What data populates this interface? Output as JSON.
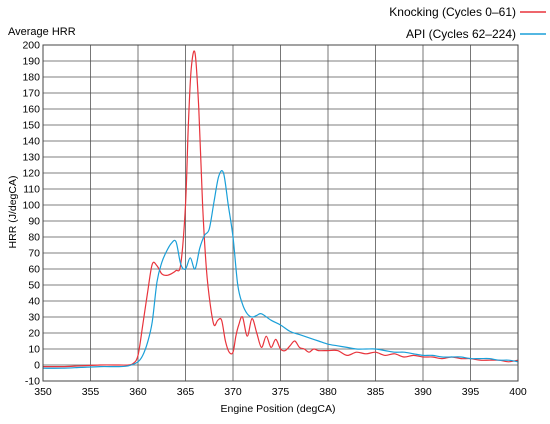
{
  "chart_data": {
    "type": "line",
    "title": "Average HRR",
    "xlabel": "Engine Position (degCA)",
    "ylabel": "HRR (J/degCA)",
    "xlim": [
      350,
      400
    ],
    "ylim": [
      -10,
      200
    ],
    "xticks": [
      350,
      355,
      360,
      365,
      370,
      375,
      380,
      385,
      390,
      395,
      400
    ],
    "yticks": [
      -10,
      0,
      10,
      20,
      30,
      40,
      50,
      60,
      70,
      80,
      90,
      100,
      110,
      120,
      130,
      140,
      150,
      160,
      170,
      180,
      190,
      200
    ],
    "grid": true,
    "legend_position": "top-right",
    "series": [
      {
        "name": "Knocking (Cycles 0–61)",
        "color": "#e8343c",
        "x": [
          350,
          352,
          354,
          356,
          358,
          359,
          359.5,
          360,
          360.5,
          361,
          361.5,
          362,
          362.5,
          363,
          363.5,
          364,
          364.5,
          365,
          365.3,
          365.6,
          366,
          366.4,
          366.8,
          367.2,
          367.6,
          368,
          368.4,
          368.8,
          369.2,
          369.6,
          370,
          370.3,
          370.6,
          371,
          371.5,
          372,
          372.5,
          373,
          373.5,
          374,
          374.5,
          375,
          375.5,
          376,
          376.5,
          377,
          377.5,
          378,
          378.5,
          379,
          380,
          381,
          382,
          383,
          384,
          385,
          386,
          387,
          388,
          389,
          390,
          391,
          392,
          393,
          394,
          395,
          396,
          397,
          398,
          399,
          400
        ],
        "y": [
          -1,
          -1,
          -0.5,
          0,
          0,
          0,
          1,
          6,
          25,
          45,
          63,
          62,
          57,
          56,
          57,
          59,
          63,
          100,
          150,
          185,
          195,
          160,
          100,
          60,
          38,
          25,
          28,
          28,
          15,
          8,
          8,
          18,
          25,
          30,
          18,
          29,
          20,
          11,
          18,
          11,
          16,
          10,
          9,
          12,
          15,
          11,
          10,
          8,
          10,
          9,
          9,
          9,
          6,
          8,
          7,
          8,
          6,
          7,
          5,
          6,
          5,
          5,
          4,
          5,
          4,
          4,
          3,
          3,
          3,
          2,
          3
        ]
      },
      {
        "name": "API (Cycles 62–224)",
        "color": "#1a9fd8",
        "x": [
          350,
          352,
          354,
          356,
          358,
          359,
          360,
          360.5,
          361,
          361.5,
          362,
          362.5,
          363,
          363.5,
          364,
          364.5,
          365,
          365.5,
          366,
          366.5,
          367,
          367.5,
          368,
          368.5,
          369,
          369.5,
          370,
          370.5,
          371,
          371.5,
          372,
          372.5,
          373,
          374,
          375,
          376,
          377,
          378,
          379,
          380,
          381,
          382,
          383,
          384,
          385,
          386,
          387,
          388,
          389,
          390,
          391,
          392,
          393,
          394,
          395,
          396,
          397,
          398,
          399,
          400
        ],
        "y": [
          -2,
          -2,
          -1.5,
          -1,
          -1,
          -0.5,
          2,
          6,
          14,
          27,
          52,
          64,
          71,
          76,
          77,
          63,
          60,
          67,
          60,
          73,
          81,
          85,
          102,
          118,
          120,
          100,
          80,
          50,
          38,
          32,
          30,
          31,
          32,
          28,
          25,
          21,
          19,
          17,
          15,
          13,
          12,
          11,
          10,
          10,
          10,
          9,
          8,
          8,
          7,
          6,
          6,
          5,
          5,
          5,
          4,
          4,
          4,
          3,
          3,
          2
        ]
      }
    ]
  }
}
